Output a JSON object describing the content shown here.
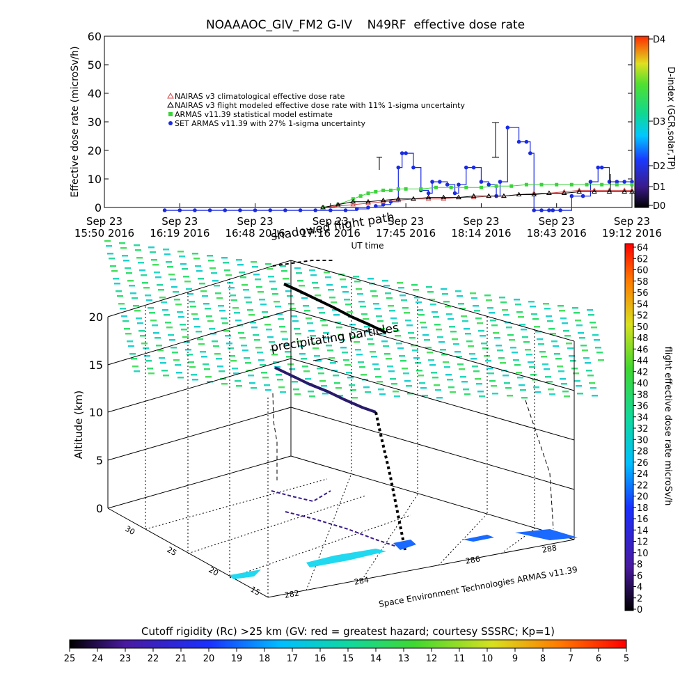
{
  "chart_data": [
    {
      "type": "line",
      "title": "NOAAAOC_GIV_FM2 G-IV    N49RF  effective dose rate",
      "ylabel": "Effective dose rate (microSv/h)",
      "xlabel": "UT time",
      "ylim": [
        0,
        60
      ],
      "yticks": [
        "0",
        "10",
        "20",
        "30",
        "40",
        "50",
        "60"
      ],
      "xticks": [
        {
          "date": "Sep 23",
          "time": "15:50 2016"
        },
        {
          "date": "Sep 23",
          "time": "16:19 2016"
        },
        {
          "date": "Sep 23",
          "time": "16:48 2016"
        },
        {
          "date": "Sep 23",
          "time": "17:16 2016"
        },
        {
          "date": "Sep 23",
          "time": "17:45 2016"
        },
        {
          "date": "Sep 23",
          "time": "18:14 2016"
        },
        {
          "date": "Sep 23",
          "time": "18:43 2016"
        },
        {
          "date": "Sep 23",
          "time": "19:12 2016"
        }
      ],
      "legend": [
        {
          "label": "NAIRAS v3 climatological effective dose rate",
          "color": "#d24a4a",
          "marker": "triangle"
        },
        {
          "label": "NAIRAS v3 flight modeled effective dose rate with 11% 1-sigma uncertainty",
          "color": "#000000",
          "marker": "triangle-open"
        },
        {
          "label": "ARMAS v11.39 statistical model estimate",
          "color": "#3ad43a",
          "marker": "square"
        },
        {
          "label": "SET ARMAS v11.39 with 27% 1-sigma uncertainty",
          "color": "#1a2be0",
          "marker": "circle"
        }
      ],
      "legend_placement": "upper-left",
      "series": [
        {
          "name": "SET ARMAS v11.39 with 27% 1-sigma uncertainty",
          "x": [
            0.8,
            1.0,
            1.2,
            1.4,
            1.6,
            1.8,
            2.0,
            2.2,
            2.4,
            2.6,
            2.8,
            3.0,
            3.2,
            3.35,
            3.5,
            3.6,
            3.7,
            3.8,
            3.9,
            3.95,
            4.0,
            4.1,
            4.2,
            4.3,
            4.35,
            4.45,
            4.55,
            4.65,
            4.7,
            4.8,
            4.9,
            5.0,
            5.1,
            5.2,
            5.25,
            5.35,
            5.5,
            5.6,
            5.65,
            5.7,
            5.8,
            5.9,
            5.95,
            6.05,
            6.2,
            6.35,
            6.45,
            6.55,
            6.6,
            6.7,
            6.8,
            6.9,
            7.0
          ],
          "values": [
            -1,
            -1,
            -1,
            -1,
            -1,
            -1,
            -1,
            -1,
            -1,
            -1,
            -1,
            -1,
            -1,
            -0.5,
            0,
            0.5,
            1,
            2,
            14,
            19,
            19,
            14,
            6,
            5,
            9,
            9,
            8,
            5,
            8,
            14,
            14,
            9,
            8,
            4,
            9,
            28,
            23,
            23,
            19,
            -1,
            -1,
            -1,
            -1,
            -1,
            4,
            4,
            9,
            14,
            14,
            9,
            9,
            9,
            9
          ]
        },
        {
          "name": "ARMAS v11.39 statistical model estimate",
          "x": [
            2.9,
            3.1,
            3.3,
            3.4,
            3.5,
            3.6,
            3.7,
            3.8,
            3.9,
            4.0,
            4.2,
            4.4,
            4.6,
            4.8,
            5.0,
            5.2,
            5.4,
            5.6,
            5.8,
            6.0,
            6.2,
            6.4,
            6.6,
            6.8,
            7.0
          ],
          "values": [
            0,
            1,
            3,
            4,
            5,
            5.5,
            6,
            6,
            6.5,
            6.5,
            6.5,
            7,
            7,
            7,
            7,
            7.5,
            7.5,
            8,
            8,
            8,
            8,
            8,
            8,
            8,
            8
          ]
        },
        {
          "name": "NAIRAS v3 climatological effective dose rate",
          "x": [
            2.9,
            3.1,
            3.3,
            3.5,
            3.7,
            3.9,
            4.1,
            4.3,
            4.5,
            4.7,
            4.9,
            5.1,
            5.3,
            5.5,
            5.7,
            5.9,
            6.1,
            6.3,
            6.5,
            6.7,
            6.9,
            7.0
          ],
          "values": [
            0,
            0.5,
            1,
            1.5,
            2,
            2.5,
            3,
            3,
            3,
            3.5,
            3.5,
            4,
            4,
            4.5,
            5,
            5,
            5.5,
            6,
            6,
            6,
            6,
            6
          ]
        },
        {
          "name": "NAIRAS v3 flight modeled effective dose rate with 11% 1-sigma uncertainty",
          "x": [
            2.9,
            3.1,
            3.3,
            3.5,
            3.7,
            3.9,
            4.1,
            4.3,
            4.5,
            4.7,
            4.9,
            5.1,
            5.3,
            5.5,
            5.7,
            5.9,
            6.1,
            6.3,
            6.5,
            6.7,
            6.9,
            7.0
          ],
          "values": [
            0,
            1,
            2,
            2,
            2.5,
            3,
            3,
            3.5,
            3.5,
            3.5,
            4,
            4,
            4,
            4.5,
            4.5,
            5,
            5,
            5.5,
            5.5,
            5.5,
            5.5,
            5.5
          ]
        }
      ],
      "right_axis": {
        "label": "D-index (GCR,solar,TP)",
        "ticks": [
          "D0",
          "D1",
          "D2",
          "D3",
          "D4"
        ]
      }
    },
    {
      "type": "scatter",
      "subtype": "3d-surface",
      "zlabel": "Altitude (km)",
      "zticks": [
        "0",
        "5",
        "10",
        "15",
        "20"
      ],
      "ylabel_ticks": [
        "15",
        "20",
        "25",
        "30"
      ],
      "xlabel_ticks": [
        "282",
        "284",
        "286",
        "288"
      ],
      "annotations": [
        "shadowed flight path",
        "precipitating particles",
        "Space Environment Technologies ARMAS v11.39"
      ],
      "colorbar_right": {
        "label": "flight effective dose rate microSv/h",
        "ticks": [
          "0",
          "2",
          "4",
          "6",
          "8",
          "10",
          "12",
          "14",
          "16",
          "18",
          "20",
          "22",
          "24",
          "26",
          "28",
          "30",
          "32",
          "34",
          "36",
          "38",
          "40",
          "42",
          "44",
          "46",
          "48",
          "50",
          "52",
          "54",
          "56",
          "58",
          "60",
          "62",
          "64"
        ]
      },
      "colorbar_bottom": {
        "label": "Cutoff rigidity (Rc) >25 km (GV: red = greatest hazard; courtesy SSSRC; Kp=1)",
        "ticks": [
          "25",
          "24",
          "23",
          "22",
          "21",
          "20",
          "19",
          "18",
          "17",
          "16",
          "15",
          "14",
          "13",
          "12",
          "11",
          "10",
          "9",
          "8",
          "7",
          "6",
          "5"
        ]
      }
    }
  ]
}
